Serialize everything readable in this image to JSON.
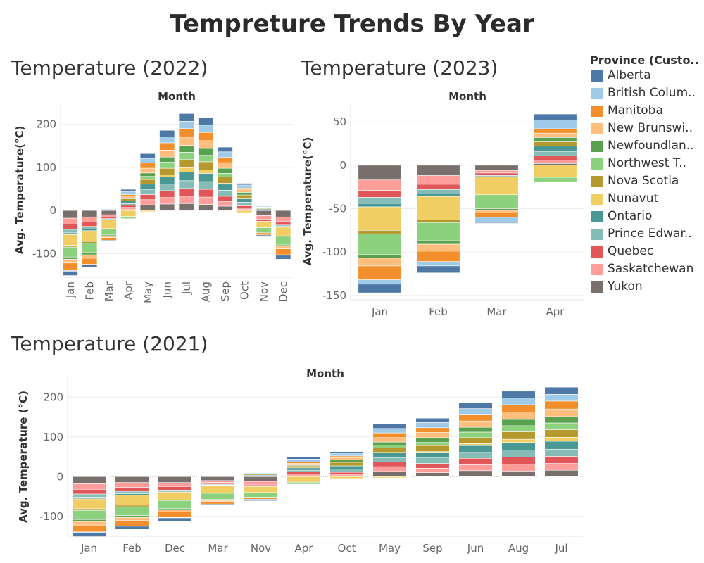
{
  "title": "Tempreture Trends By Year",
  "legend": {
    "title": "Province (Custo..",
    "items": [
      {
        "label": "Alberta",
        "color": "#4e79a7"
      },
      {
        "label": "British Colum..",
        "color": "#a0cbe8"
      },
      {
        "label": "Manitoba",
        "color": "#f28e2b"
      },
      {
        "label": "New Brunswi..",
        "color": "#ffbe7d"
      },
      {
        "label": "Newfoundlan..",
        "color": "#59a14f"
      },
      {
        "label": "Northwest T..",
        "color": "#8cd17d"
      },
      {
        "label": "Nova Scotia",
        "color": "#b6992d"
      },
      {
        "label": "Nunavut",
        "color": "#f1ce63"
      },
      {
        "label": "Ontario",
        "color": "#499894"
      },
      {
        "label": "Prince Edwar..",
        "color": "#86bcb6"
      },
      {
        "label": "Quebec",
        "color": "#e15759"
      },
      {
        "label": "Saskatchewan",
        "color": "#ff9d9a"
      },
      {
        "label": "Yukon",
        "color": "#79706e"
      }
    ]
  },
  "chart_data": [
    {
      "id": "2022",
      "type": "bar",
      "stacked": true,
      "title": "Temperature (2022)",
      "column_header": "Month",
      "ylabel": "Avg. Temperature(°C)",
      "ylim": [
        -155,
        250
      ],
      "yticks": [
        -100,
        0,
        100,
        200
      ],
      "rotate_tick_labels": true,
      "grid": true,
      "categories": [
        "Jan",
        "Feb",
        "Mar",
        "Apr",
        "May",
        "Jun",
        "Jul",
        "Aug",
        "Sep",
        "Oct",
        "Nov",
        "Dec"
      ],
      "series": [
        {
          "name": "Yukon",
          "values": [
            -18,
            -15,
            -10,
            2,
            13,
            15,
            16,
            14,
            10,
            2,
            -12,
            -15
          ]
        },
        {
          "name": "Saskatchewan",
          "values": [
            -14,
            -12,
            -5,
            5,
            12,
            15,
            17,
            17,
            11,
            4,
            -9,
            -10
          ]
        },
        {
          "name": "Quebec",
          "values": [
            -12,
            -10,
            -4,
            5,
            12,
            16,
            18,
            18,
            12,
            5,
            -4,
            -9
          ]
        },
        {
          "name": "Prince Edwar..",
          "values": [
            -8,
            -6,
            -2,
            4,
            11,
            15,
            18,
            18,
            14,
            8,
            2,
            -3
          ]
        },
        {
          "name": "Ontario",
          "values": [
            -4,
            -4,
            -1,
            6,
            13,
            17,
            20,
            19,
            14,
            8,
            2,
            -2
          ]
        },
        {
          "name": "Nunavut",
          "values": [
            -25,
            -25,
            -20,
            -14,
            -3,
            5,
            10,
            8,
            2,
            -5,
            -15,
            -20
          ]
        },
        {
          "name": "Nova Scotia",
          "values": [
            -4,
            -4,
            0,
            5,
            11,
            15,
            19,
            19,
            15,
            9,
            3,
            -1
          ]
        },
        {
          "name": "Northwest T..",
          "values": [
            -23,
            -22,
            -15,
            -5,
            7,
            14,
            17,
            15,
            8,
            -1,
            -12,
            -20
          ]
        },
        {
          "name": "Newfoundlan..",
          "values": [
            -5,
            -5,
            -3,
            2,
            8,
            12,
            16,
            16,
            12,
            6,
            1,
            -3
          ]
        },
        {
          "name": "New Brunswi..",
          "values": [
            -9,
            -8,
            -3,
            4,
            11,
            16,
            19,
            18,
            13,
            6,
            0,
            -6
          ]
        },
        {
          "name": "Manitoba",
          "values": [
            -17,
            -14,
            -6,
            4,
            12,
            17,
            20,
            19,
            12,
            4,
            -5,
            -14
          ]
        },
        {
          "name": "British Colum..",
          "values": [
            -2,
            0,
            3,
            7,
            11,
            14,
            17,
            17,
            13,
            7,
            2,
            -1
          ]
        },
        {
          "name": "Alberta",
          "values": [
            -10,
            -7,
            -2,
            5,
            11,
            15,
            18,
            17,
            11,
            4,
            -4,
            -9
          ]
        }
      ]
    },
    {
      "id": "2023",
      "type": "bar",
      "stacked": true,
      "title": "Temperature (2023)",
      "column_header": "Month",
      "ylabel": "Avg. Temperature(°C)",
      "ylim": [
        -155,
        72
      ],
      "yticks": [
        -150,
        -100,
        -50,
        0,
        50
      ],
      "rotate_tick_labels": false,
      "grid": true,
      "categories": [
        "Jan",
        "Feb",
        "Mar",
        "Apr"
      ],
      "series": [
        {
          "name": "Yukon",
          "values": [
            -17,
            -12,
            -6,
            2
          ]
        },
        {
          "name": "Saskatchewan",
          "values": [
            -12,
            -10,
            -3,
            4
          ]
        },
        {
          "name": "Quebec",
          "values": [
            -8,
            -6,
            -2,
            5
          ]
        },
        {
          "name": "Prince Edwar..",
          "values": [
            -7,
            -5,
            -1,
            5
          ]
        },
        {
          "name": "Ontario",
          "values": [
            -4,
            -3,
            -1,
            6
          ]
        },
        {
          "name": "Nunavut",
          "values": [
            -27,
            -27,
            -21,
            -14
          ]
        },
        {
          "name": "Nova Scotia",
          "values": [
            -4,
            -3,
            0,
            5
          ]
        },
        {
          "name": "Northwest T..",
          "values": [
            -24,
            -21,
            -16,
            -5
          ]
        },
        {
          "name": "Newfoundlan..",
          "values": [
            -4,
            -4,
            -2,
            5
          ]
        },
        {
          "name": "New Brunswi..",
          "values": [
            -9,
            -8,
            -3,
            5
          ]
        },
        {
          "name": "Manitoba",
          "values": [
            -16,
            -12,
            -5,
            5
          ]
        },
        {
          "name": "British Colum..",
          "values": [
            -5,
            -5,
            -6,
            10
          ]
        },
        {
          "name": "Alberta",
          "values": [
            -10,
            -8,
            -1,
            7
          ]
        }
      ]
    },
    {
      "id": "2021",
      "type": "bar",
      "stacked": true,
      "title": "Temperature (2021)",
      "column_header": "Month",
      "ylabel": "Avg. Temperature (°C)",
      "ylim": [
        -150,
        250
      ],
      "yticks": [
        -100,
        0,
        100,
        200
      ],
      "rotate_tick_labels": false,
      "grid": true,
      "categories": [
        "Jan",
        "Feb",
        "Dec",
        "Mar",
        "Nov",
        "Apr",
        "Oct",
        "May",
        "Sep",
        "Jun",
        "Aug",
        "Jul"
      ],
      "series": [
        {
          "name": "Yukon",
          "values": [
            -18,
            -15,
            -15,
            -10,
            -12,
            2,
            2,
            13,
            10,
            15,
            14,
            16
          ]
        },
        {
          "name": "Saskatchewan",
          "values": [
            -14,
            -12,
            -10,
            -5,
            -9,
            5,
            4,
            12,
            11,
            15,
            17,
            17
          ]
        },
        {
          "name": "Quebec",
          "values": [
            -12,
            -10,
            -9,
            -4,
            -4,
            5,
            5,
            12,
            12,
            16,
            18,
            18
          ]
        },
        {
          "name": "Prince Edwar..",
          "values": [
            -8,
            -6,
            -3,
            -2,
            2,
            4,
            8,
            11,
            14,
            15,
            18,
            18
          ]
        },
        {
          "name": "Ontario",
          "values": [
            -4,
            -4,
            -2,
            -1,
            2,
            6,
            8,
            13,
            14,
            17,
            19,
            20
          ]
        },
        {
          "name": "Nunavut",
          "values": [
            -25,
            -25,
            -20,
            -20,
            -15,
            -14,
            -5,
            -3,
            2,
            5,
            8,
            10
          ]
        },
        {
          "name": "Nova Scotia",
          "values": [
            -4,
            -4,
            -1,
            0,
            3,
            5,
            9,
            11,
            15,
            15,
            19,
            19
          ]
        },
        {
          "name": "Northwest T..",
          "values": [
            -23,
            -22,
            -20,
            -15,
            -12,
            -5,
            -1,
            7,
            8,
            14,
            15,
            17
          ]
        },
        {
          "name": "Newfoundlan..",
          "values": [
            -5,
            -5,
            -3,
            -3,
            1,
            2,
            6,
            8,
            12,
            12,
            16,
            16
          ]
        },
        {
          "name": "New Brunswi..",
          "values": [
            -9,
            -8,
            -6,
            -3,
            0,
            4,
            6,
            11,
            13,
            16,
            18,
            19
          ]
        },
        {
          "name": "Manitoba",
          "values": [
            -17,
            -14,
            -14,
            -6,
            -5,
            4,
            4,
            12,
            12,
            17,
            19,
            20
          ]
        },
        {
          "name": "British Colum..",
          "values": [
            -2,
            0,
            -1,
            3,
            2,
            7,
            7,
            11,
            13,
            14,
            17,
            17
          ]
        },
        {
          "name": "Alberta",
          "values": [
            -10,
            -7,
            -9,
            -2,
            -4,
            5,
            4,
            11,
            11,
            15,
            17,
            18
          ]
        }
      ]
    }
  ]
}
